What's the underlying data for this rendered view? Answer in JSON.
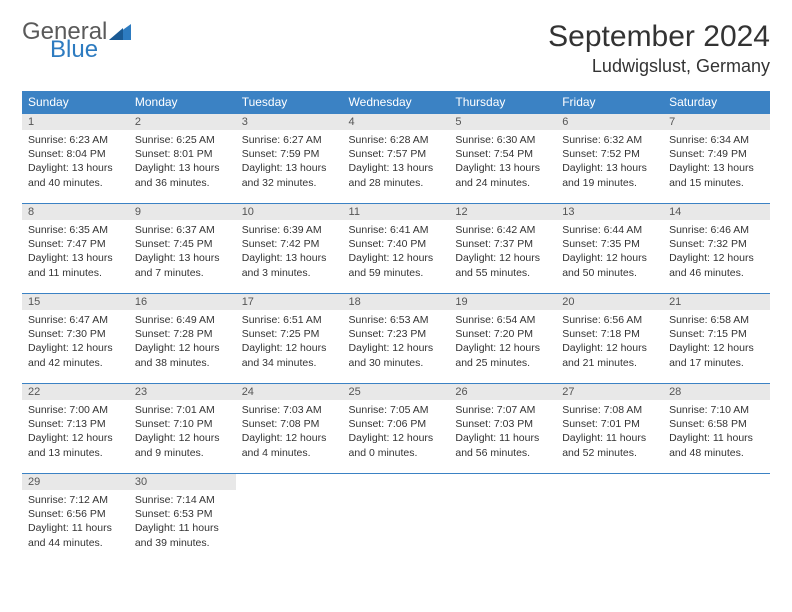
{
  "logo": {
    "general": "General",
    "blue": "Blue"
  },
  "header": {
    "month_title": "September 2024",
    "location": "Ludwigslust, Germany"
  },
  "colors": {
    "header_bg": "#3b82c4",
    "header_fg": "#ffffff",
    "daynum_bg": "#e8e8e8",
    "row_border": "#3b82c4",
    "logo_general": "#5a5a5a",
    "logo_blue": "#2d7bc0",
    "text": "#333333"
  },
  "weekdays": [
    "Sunday",
    "Monday",
    "Tuesday",
    "Wednesday",
    "Thursday",
    "Friday",
    "Saturday"
  ],
  "days": [
    {
      "n": "1",
      "sr": "6:23 AM",
      "ss": "8:04 PM",
      "dl": "13 hours and 40 minutes."
    },
    {
      "n": "2",
      "sr": "6:25 AM",
      "ss": "8:01 PM",
      "dl": "13 hours and 36 minutes."
    },
    {
      "n": "3",
      "sr": "6:27 AM",
      "ss": "7:59 PM",
      "dl": "13 hours and 32 minutes."
    },
    {
      "n": "4",
      "sr": "6:28 AM",
      "ss": "7:57 PM",
      "dl": "13 hours and 28 minutes."
    },
    {
      "n": "5",
      "sr": "6:30 AM",
      "ss": "7:54 PM",
      "dl": "13 hours and 24 minutes."
    },
    {
      "n": "6",
      "sr": "6:32 AM",
      "ss": "7:52 PM",
      "dl": "13 hours and 19 minutes."
    },
    {
      "n": "7",
      "sr": "6:34 AM",
      "ss": "7:49 PM",
      "dl": "13 hours and 15 minutes."
    },
    {
      "n": "8",
      "sr": "6:35 AM",
      "ss": "7:47 PM",
      "dl": "13 hours and 11 minutes."
    },
    {
      "n": "9",
      "sr": "6:37 AM",
      "ss": "7:45 PM",
      "dl": "13 hours and 7 minutes."
    },
    {
      "n": "10",
      "sr": "6:39 AM",
      "ss": "7:42 PM",
      "dl": "13 hours and 3 minutes."
    },
    {
      "n": "11",
      "sr": "6:41 AM",
      "ss": "7:40 PM",
      "dl": "12 hours and 59 minutes."
    },
    {
      "n": "12",
      "sr": "6:42 AM",
      "ss": "7:37 PM",
      "dl": "12 hours and 55 minutes."
    },
    {
      "n": "13",
      "sr": "6:44 AM",
      "ss": "7:35 PM",
      "dl": "12 hours and 50 minutes."
    },
    {
      "n": "14",
      "sr": "6:46 AM",
      "ss": "7:32 PM",
      "dl": "12 hours and 46 minutes."
    },
    {
      "n": "15",
      "sr": "6:47 AM",
      "ss": "7:30 PM",
      "dl": "12 hours and 42 minutes."
    },
    {
      "n": "16",
      "sr": "6:49 AM",
      "ss": "7:28 PM",
      "dl": "12 hours and 38 minutes."
    },
    {
      "n": "17",
      "sr": "6:51 AM",
      "ss": "7:25 PM",
      "dl": "12 hours and 34 minutes."
    },
    {
      "n": "18",
      "sr": "6:53 AM",
      "ss": "7:23 PM",
      "dl": "12 hours and 30 minutes."
    },
    {
      "n": "19",
      "sr": "6:54 AM",
      "ss": "7:20 PM",
      "dl": "12 hours and 25 minutes."
    },
    {
      "n": "20",
      "sr": "6:56 AM",
      "ss": "7:18 PM",
      "dl": "12 hours and 21 minutes."
    },
    {
      "n": "21",
      "sr": "6:58 AM",
      "ss": "7:15 PM",
      "dl": "12 hours and 17 minutes."
    },
    {
      "n": "22",
      "sr": "7:00 AM",
      "ss": "7:13 PM",
      "dl": "12 hours and 13 minutes."
    },
    {
      "n": "23",
      "sr": "7:01 AM",
      "ss": "7:10 PM",
      "dl": "12 hours and 9 minutes."
    },
    {
      "n": "24",
      "sr": "7:03 AM",
      "ss": "7:08 PM",
      "dl": "12 hours and 4 minutes."
    },
    {
      "n": "25",
      "sr": "7:05 AM",
      "ss": "7:06 PM",
      "dl": "12 hours and 0 minutes."
    },
    {
      "n": "26",
      "sr": "7:07 AM",
      "ss": "7:03 PM",
      "dl": "11 hours and 56 minutes."
    },
    {
      "n": "27",
      "sr": "7:08 AM",
      "ss": "7:01 PM",
      "dl": "11 hours and 52 minutes."
    },
    {
      "n": "28",
      "sr": "7:10 AM",
      "ss": "6:58 PM",
      "dl": "11 hours and 48 minutes."
    },
    {
      "n": "29",
      "sr": "7:12 AM",
      "ss": "6:56 PM",
      "dl": "11 hours and 44 minutes."
    },
    {
      "n": "30",
      "sr": "7:14 AM",
      "ss": "6:53 PM",
      "dl": "11 hours and 39 minutes."
    }
  ],
  "labels": {
    "sunrise": "Sunrise:",
    "sunset": "Sunset:",
    "daylight": "Daylight:"
  },
  "layout": {
    "first_weekday_index": 0,
    "total_cells": 35
  }
}
